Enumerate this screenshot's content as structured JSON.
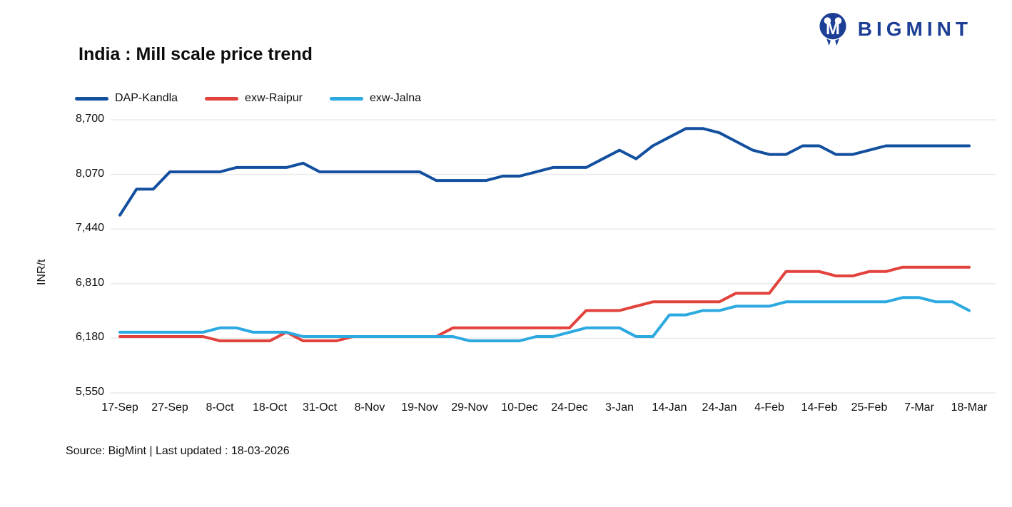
{
  "header": {
    "brand": "BIGMINT"
  },
  "chart_data": {
    "type": "line",
    "title": "India : Mill scale price trend",
    "ylabel": "INR/t",
    "ylim": [
      5550,
      8700
    ],
    "yticks": [
      8700,
      8070,
      7440,
      6810,
      6180,
      5550
    ],
    "ytick_labels": [
      "8,700",
      "8,070",
      "7,440",
      "6,810",
      "6,180",
      "5,550"
    ],
    "x_tick_labels": [
      "17-Sep",
      "27-Sep",
      "8-Oct",
      "18-Oct",
      "31-Oct",
      "8-Nov",
      "19-Nov",
      "29-Nov",
      "10-Dec",
      "24-Dec",
      "3-Jan",
      "14-Jan",
      "24-Jan",
      "4-Feb",
      "14-Feb",
      "25-Feb",
      "7-Mar",
      "18-Mar"
    ],
    "points_per_label": 3,
    "grid": "horizontal",
    "gridline_color": "#e8e8e8",
    "legend_position": "top-left",
    "series": [
      {
        "name": "DAP-Kandla",
        "color": "#124f9e",
        "values": [
          7600,
          7900,
          7900,
          8100,
          8100,
          8100,
          8100,
          8150,
          8150,
          8150,
          8150,
          8200,
          8100,
          8100,
          8100,
          8100,
          8100,
          8100,
          8100,
          8000,
          8000,
          8000,
          8000,
          8050,
          8050,
          8100,
          8150,
          8150,
          8150,
          8250,
          8350,
          8250,
          8400,
          8500,
          8600,
          8600,
          8550,
          8450,
          8350,
          8300,
          8300,
          8400,
          8400,
          8300,
          8300,
          8350,
          8400,
          8400,
          8400,
          8400,
          8400,
          8400
        ]
      },
      {
        "name": "exw-Raipur",
        "color": "#e2423c",
        "values": [
          6200,
          6200,
          6200,
          6200,
          6200,
          6200,
          6150,
          6150,
          6150,
          6150,
          6250,
          6150,
          6150,
          6150,
          6200,
          6200,
          6200,
          6200,
          6200,
          6200,
          6300,
          6300,
          6300,
          6300,
          6300,
          6300,
          6300,
          6300,
          6500,
          6500,
          6500,
          6550,
          6600,
          6600,
          6600,
          6600,
          6600,
          6700,
          6700,
          6700,
          6950,
          6950,
          6950,
          6900,
          6900,
          6950,
          6950,
          7000,
          7000,
          7000,
          7000,
          7000
        ]
      },
      {
        "name": "exw-Jalna",
        "color": "#2ba9e0",
        "values": [
          6250,
          6250,
          6250,
          6250,
          6250,
          6250,
          6300,
          6300,
          6250,
          6250,
          6250,
          6200,
          6200,
          6200,
          6200,
          6200,
          6200,
          6200,
          6200,
          6200,
          6200,
          6150,
          6150,
          6150,
          6150,
          6200,
          6200,
          6250,
          6300,
          6300,
          6300,
          6200,
          6200,
          6450,
          6450,
          6500,
          6500,
          6550,
          6550,
          6550,
          6600,
          6600,
          6600,
          6600,
          6600,
          6600,
          6600,
          6650,
          6650,
          6600,
          6600,
          6500
        ]
      }
    ]
  },
  "footer": {
    "source_note": "Source: BigMint | Last updated : 18-03-2026"
  }
}
